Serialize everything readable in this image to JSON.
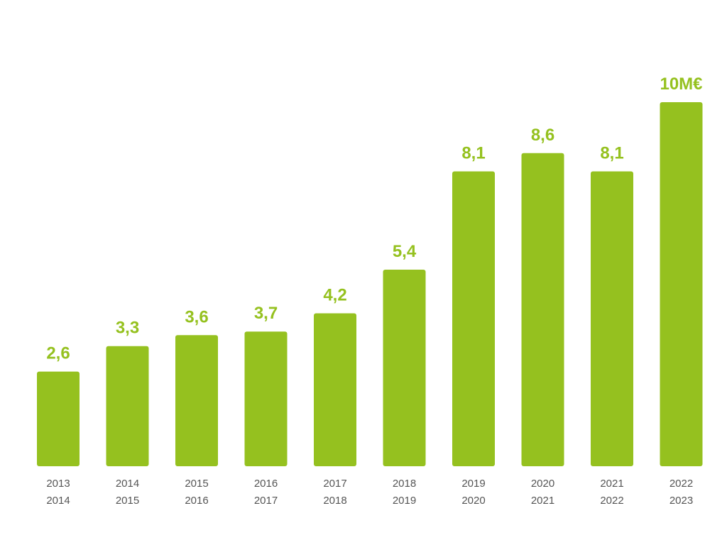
{
  "colors": {
    "bar": "#95c11f",
    "value_label": "#95c11f",
    "tick_label": "#555555",
    "background": "#ffffff"
  },
  "chart_data": {
    "type": "bar",
    "categories": [
      [
        "2013",
        "2014"
      ],
      [
        "2014",
        "2015"
      ],
      [
        "2015",
        "2016"
      ],
      [
        "2016",
        "2017"
      ],
      [
        "2017",
        "2018"
      ],
      [
        "2018",
        "2019"
      ],
      [
        "2019",
        "2020"
      ],
      [
        "2020",
        "2021"
      ],
      [
        "2021",
        "2022"
      ],
      [
        "2022",
        "2023"
      ]
    ],
    "values": [
      2.6,
      3.3,
      3.6,
      3.7,
      4.2,
      5.4,
      8.1,
      8.6,
      8.1,
      10
    ],
    "value_labels": [
      "2,6",
      "3,3",
      "3,6",
      "3,7",
      "4,2",
      "5,4",
      "8,1",
      "8,6",
      "8,1",
      "10M€"
    ],
    "title": "",
    "xlabel": "",
    "ylabel": "",
    "ylim": [
      0,
      10
    ],
    "grid": false,
    "legend": "none"
  }
}
